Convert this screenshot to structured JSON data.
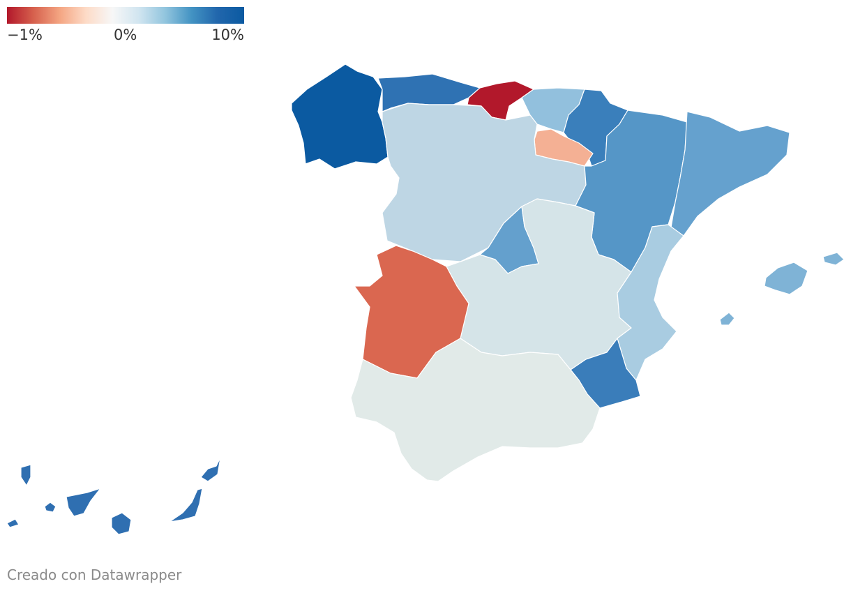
{
  "legend": {
    "tick_min": "−1%",
    "tick_mid": "0%",
    "tick_max": "10%",
    "gradient": [
      "#b2182b",
      "#d6604d",
      "#f4a582",
      "#fddbc7",
      "#f7f7f7",
      "#d1e5f0",
      "#92c5de",
      "#4393c3",
      "#2166ac",
      "#0b5aa1"
    ]
  },
  "regions": [
    {
      "name": "Galicia",
      "color": "#0b5aa1"
    },
    {
      "name": "Asturias",
      "color": "#2f72b3"
    },
    {
      "name": "Cantabria",
      "color": "#b2182b"
    },
    {
      "name": "País Vasco",
      "color": "#92c0dd"
    },
    {
      "name": "Navarra",
      "color": "#3a7fbb"
    },
    {
      "name": "La Rioja",
      "color": "#f4b094"
    },
    {
      "name": "Castilla y León",
      "color": "#bed6e4"
    },
    {
      "name": "Aragón",
      "color": "#5596c7"
    },
    {
      "name": "Cataluña",
      "color": "#65a1ce"
    },
    {
      "name": "Madrid",
      "color": "#64a0cd"
    },
    {
      "name": "Castilla-La Mancha",
      "color": "#d5e4e8"
    },
    {
      "name": "Extremadura",
      "color": "#da6750"
    },
    {
      "name": "Comunidad Valenciana",
      "color": "#a9cce1"
    },
    {
      "name": "Murcia",
      "color": "#3a7dba"
    },
    {
      "name": "Andalucía",
      "color": "#e1eae8"
    },
    {
      "name": "Islas Baleares",
      "color": "#7fb3d6"
    },
    {
      "name": "Canarias",
      "color": "#2f6fb1"
    }
  ],
  "footer": {
    "credit": "Creado con Datawrapper"
  }
}
